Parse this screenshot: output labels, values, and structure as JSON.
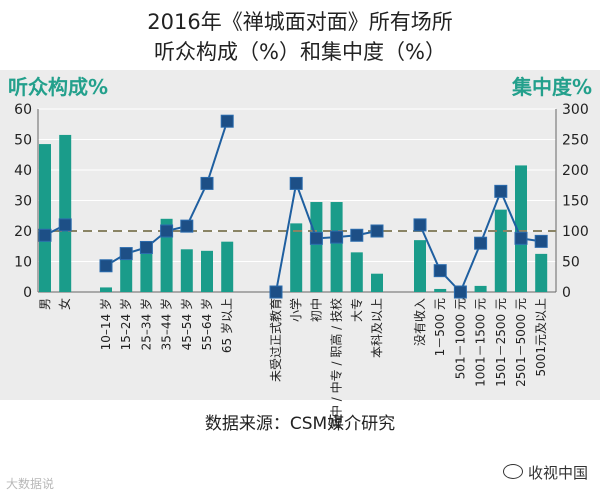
{
  "page": {
    "title_line1": "2016年《禅城面对面》所有场所",
    "title_line2": "听众构成（%）和集中度（%）",
    "source": "数据来源：CSM媒介研究",
    "watermark_left": "大数据说",
    "watermark_right": "收视中国"
  },
  "chart_data": {
    "type": "bar+line",
    "left_axis": {
      "label": "听众构成%",
      "min": 0,
      "max": 60,
      "ticks": [
        0,
        10,
        20,
        30,
        40,
        50,
        60
      ]
    },
    "right_axis": {
      "label": "集中度%",
      "min": 0,
      "max": 300,
      "ticks": [
        0,
        50,
        100,
        150,
        200,
        250,
        300
      ]
    },
    "reference_line": {
      "axis": "right",
      "value": 100
    },
    "colors": {
      "bar": "#1a9c8a",
      "line": "#1f5fa0",
      "marker": "#1d4f86",
      "axis_label": "#23a08c",
      "ref": "#8a8465"
    },
    "groups": [
      {
        "name": "gender",
        "categories": [
          "男",
          "女"
        ],
        "composition": [
          48.5,
          51.5
        ],
        "concentration": [
          93,
          110
        ]
      },
      {
        "name": "age",
        "categories": [
          "10–14 岁",
          "15–24 岁",
          "25–34 岁",
          "35–44 岁",
          "45–54 岁",
          "55–64 岁",
          "65 岁以上"
        ],
        "composition": [
          1.5,
          12,
          13.5,
          24,
          14,
          13.5,
          16.5
        ],
        "concentration": [
          43,
          63,
          73,
          100,
          108,
          178,
          280
        ]
      },
      {
        "name": "education",
        "categories": [
          "未受过正式教育",
          "小学",
          "初中",
          "高中 / 中专 / 职高 / 技校",
          "大专",
          "本科及以上"
        ],
        "composition": [
          0,
          22.5,
          29.5,
          29.5,
          13,
          6
        ],
        "concentration": [
          0,
          178,
          88,
          90,
          93,
          100
        ]
      },
      {
        "name": "income",
        "categories": [
          "没有收入",
          "1－500 元",
          "501－1000 元",
          "1001－1500 元",
          "1501－2500 元",
          "2501－5000 元",
          "5001元及以上"
        ],
        "composition": [
          17,
          1,
          0.5,
          2,
          27,
          41.5,
          12.5
        ],
        "concentration": [
          110,
          35,
          0,
          80,
          165,
          88,
          83
        ]
      }
    ]
  }
}
